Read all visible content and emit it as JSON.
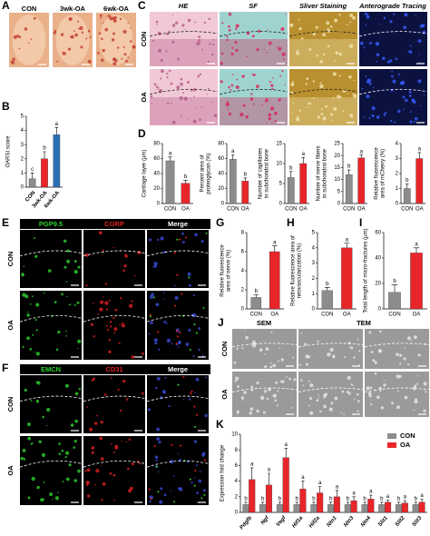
{
  "image_panels": [
    {
      "panel": "A",
      "labels": [
        "CON",
        "3wk-OA",
        "6wk-OA"
      ]
    },
    {
      "panel": "C",
      "columns": [
        "HE",
        "SF",
        "Sliver Staining",
        "Anterograde Tracing"
      ],
      "rows": [
        "CON",
        "OA"
      ]
    },
    {
      "panel": "E",
      "columns": [
        "PGP9.5",
        "CGRP",
        "Merge"
      ],
      "rows": [
        "CON",
        "OA"
      ]
    },
    {
      "panel": "F",
      "columns": [
        "EMCN",
        "CD31",
        "Merge"
      ],
      "rows": [
        "CON",
        "OA"
      ]
    },
    {
      "panel": "J",
      "columns": [
        "SEM",
        "TEM"
      ],
      "rows": [
        "CON",
        "OA"
      ]
    }
  ],
  "chart_data": [
    {
      "type": "bar",
      "panel": "B",
      "title": [
        "OARSI score"
      ],
      "categories": [
        "CON",
        "3wk-OA",
        "6wk-OA"
      ],
      "values": [
        0.6,
        2.0,
        3.7
      ],
      "errors": [
        0.4,
        0.5,
        0.5
      ],
      "annotations": [
        "c",
        "b",
        "a"
      ],
      "colors": [
        "#8c8c8c",
        "#e8262a",
        "#2c6fb5"
      ],
      "ylim": [
        0,
        5
      ],
      "yticks": [
        0,
        1,
        2,
        3,
        4,
        5
      ]
    },
    {
      "type": "bar",
      "panel": "D",
      "title": [
        "Cartilage layer (μm)"
      ],
      "categories": [
        "CON",
        "OA"
      ],
      "values": [
        57,
        27
      ],
      "errors": [
        5,
        4
      ],
      "annotations": [
        "a",
        "b"
      ],
      "colors": [
        "#8c8c8c",
        "#e8262a"
      ],
      "ylim": [
        0,
        80
      ],
      "yticks": [
        0,
        20,
        40,
        60,
        80
      ]
    },
    {
      "type": "bar",
      "title": [
        "Percent area of",
        "proteoglycan (%)"
      ],
      "categories": [
        "CON",
        "OA"
      ],
      "values": [
        59,
        30
      ],
      "errors": [
        6,
        4
      ],
      "annotations": [
        "a",
        "b"
      ],
      "colors": [
        "#8c8c8c",
        "#e8262a"
      ],
      "ylim": [
        0,
        80
      ],
      "yticks": [
        0,
        20,
        40,
        60,
        80
      ]
    },
    {
      "type": "bar",
      "title": [
        "Number of capillaries",
        "in subchondral bone"
      ],
      "categories": [
        "CON",
        "OA"
      ],
      "values": [
        6.5,
        10
      ],
      "errors": [
        1.5,
        1.5
      ],
      "annotations": [
        "b",
        "a"
      ],
      "colors": [
        "#8c8c8c",
        "#e8262a"
      ],
      "ylim": [
        0,
        15
      ],
      "yticks": [
        0,
        5,
        10,
        15
      ]
    },
    {
      "type": "bar",
      "title": [
        "Number of nerve fibers",
        "in subchondral bone"
      ],
      "categories": [
        "CON",
        "OA"
      ],
      "values": [
        12,
        19
      ],
      "errors": [
        2,
        1.2
      ],
      "annotations": [
        "b",
        "a"
      ],
      "colors": [
        "#8c8c8c",
        "#e8262a"
      ],
      "ylim": [
        0,
        25
      ],
      "yticks": [
        0,
        5,
        10,
        15,
        20,
        25
      ]
    },
    {
      "type": "bar",
      "title": [
        "Relative fluorescence",
        "area of mCherry (%)"
      ],
      "categories": [
        "CON",
        "OA"
      ],
      "values": [
        1,
        3
      ],
      "errors": [
        0.3,
        0.4
      ],
      "annotations": [
        "b",
        "a"
      ],
      "colors": [
        "#8c8c8c",
        "#e8262a"
      ],
      "ylim": [
        0,
        4
      ],
      "yticks": [
        0,
        1,
        2,
        3,
        4
      ]
    },
    {
      "type": "bar",
      "panel": "G",
      "title": [
        "Relative fluorescence",
        "area of nerve (%)"
      ],
      "categories": [
        "CON",
        "OA"
      ],
      "values": [
        1.2,
        6
      ],
      "errors": [
        0.3,
        0.6
      ],
      "annotations": [
        "b",
        "a"
      ],
      "colors": [
        "#8c8c8c",
        "#e8262a"
      ],
      "ylim": [
        0,
        8
      ],
      "yticks": [
        0,
        2,
        4,
        6,
        8
      ]
    },
    {
      "type": "bar",
      "panel": "H",
      "title": [
        "Relative fluorescence area of",
        "neovascularization (%)"
      ],
      "categories": [
        "CON",
        "OA"
      ],
      "values": [
        1.2,
        4
      ],
      "errors": [
        0.2,
        0.3
      ],
      "annotations": [
        "b",
        "a"
      ],
      "colors": [
        "#8c8c8c",
        "#e8262a"
      ],
      "ylim": [
        0,
        5
      ],
      "yticks": [
        0,
        1,
        2,
        3,
        4,
        5
      ]
    },
    {
      "type": "bar",
      "panel": "I",
      "title": [
        "Total length of micro-fractures (μm)"
      ],
      "categories": [
        "CON",
        "OA"
      ],
      "values": [
        13,
        44
      ],
      "errors": [
        6,
        4
      ],
      "annotations": [
        "b",
        "a"
      ],
      "colors": [
        "#8c8c8c",
        "#e8262a"
      ],
      "ylim": [
        0,
        60
      ],
      "yticks": [
        0,
        20,
        40,
        60
      ]
    },
    {
      "type": "grouped_bar",
      "panel": "K",
      "title": [
        "Expression fold change"
      ],
      "categories": [
        "Pdgfb",
        "Ngf",
        "Vegf",
        "Hif1a",
        "Hif2a",
        "Ntn1",
        "Ntn3",
        "Ntn4",
        "Slit1",
        "Slit2",
        "Slit3"
      ],
      "series": [
        {
          "name": "CON",
          "color": "#8c8c8c",
          "values": [
            1,
            1,
            1,
            1,
            1,
            1,
            1,
            1,
            1,
            1,
            1
          ],
          "errors": [
            0.3,
            0.3,
            0.3,
            0.3,
            0.3,
            0.3,
            0.3,
            0.3,
            0.3,
            0.3,
            0.3
          ],
          "annotations": [
            "b",
            "b",
            "b",
            "b",
            "b",
            "b",
            "b",
            "b",
            "b",
            "b",
            "b"
          ]
        },
        {
          "name": "OA",
          "color": "#e8262a",
          "values": [
            4.2,
            3.5,
            7,
            3,
            2.5,
            2,
            1.5,
            1.7,
            1.3,
            1.2,
            1.3
          ],
          "errors": [
            1.5,
            1.5,
            1.2,
            1,
            0.8,
            0.8,
            0.5,
            0.5,
            0.3,
            0.3,
            0.4
          ],
          "annotations": [
            "a",
            "a",
            "a",
            "a",
            "a",
            "a",
            "a",
            "a",
            "a",
            "a",
            "a"
          ]
        }
      ],
      "ylim": [
        0,
        10
      ],
      "yticks": [
        0,
        2,
        4,
        6,
        8,
        10
      ]
    }
  ]
}
